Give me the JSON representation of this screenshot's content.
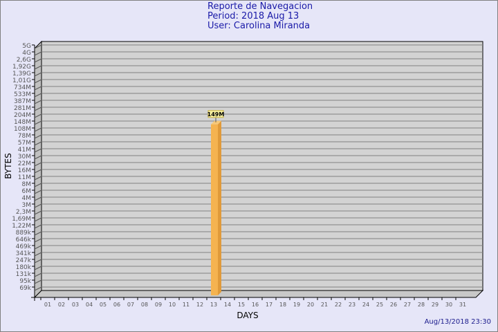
{
  "chart_data": {
    "type": "bar",
    "title": [
      "Reporte de Navegacion",
      "Period: 2018 Aug 13",
      "User: Carolina Miranda"
    ],
    "xlabel": "DAYS",
    "ylabel": "BYTES",
    "categories": [
      "01",
      "02",
      "03",
      "04",
      "05",
      "06",
      "07",
      "08",
      "09",
      "10",
      "11",
      "12",
      "13",
      "14",
      "15",
      "16",
      "17",
      "18",
      "19",
      "20",
      "21",
      "22",
      "23",
      "24",
      "25",
      "26",
      "27",
      "28",
      "29",
      "30",
      "31"
    ],
    "y_ticks": [
      "5G",
      "4G",
      "2,6G",
      "1,92G",
      "1,39G",
      "1,01G",
      "734M",
      "533M",
      "387M",
      "281M",
      "204M",
      "148M",
      "108M",
      "78M",
      "57M",
      "41M",
      "30M",
      "22M",
      "16M",
      "11M",
      "8M",
      "6M",
      "4M",
      "3M",
      "2,3M",
      "1,69M",
      "1,22M",
      "889k",
      "646k",
      "469k",
      "341k",
      "247k",
      "180k",
      "131k",
      "95k",
      "69k"
    ],
    "y_scale": "log",
    "grid": true,
    "series": [
      {
        "values": [
          0,
          0,
          0,
          0,
          0,
          0,
          0,
          0,
          0,
          0,
          0,
          0,
          149000000,
          0,
          0,
          0,
          0,
          0,
          0,
          0,
          0,
          0,
          0,
          0,
          0,
          0,
          0,
          0,
          0,
          0,
          0
        ],
        "data_labels": {
          "12": "149M"
        },
        "color": "#f5b350"
      }
    ],
    "timestamp": "Aug/13/2018 23:30"
  }
}
